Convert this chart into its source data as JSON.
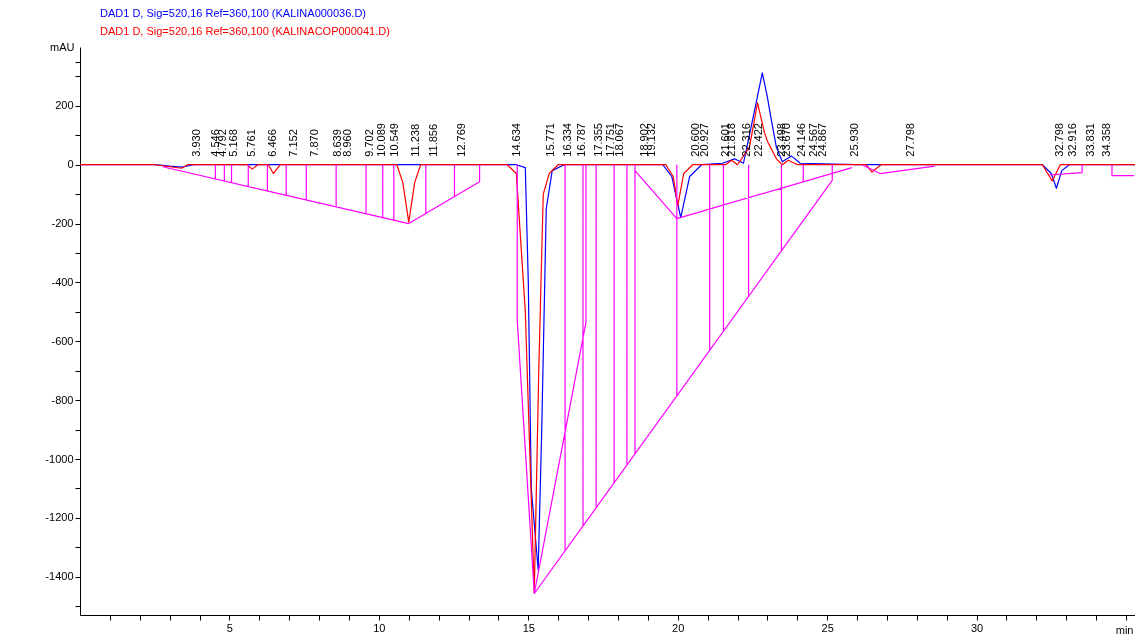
{
  "chart_data": {
    "type": "line",
    "xlabel": "min",
    "ylabel": "mAU",
    "xlim": [
      0,
      35.3
    ],
    "ylim": [
      -1530,
      400
    ],
    "grid": false,
    "legend": "top left",
    "xticks": [
      {
        "value": 1,
        "label": null
      },
      {
        "value": 2,
        "label": null
      },
      {
        "value": 3,
        "label": null
      },
      {
        "value": 4,
        "label": null
      },
      5,
      {
        "value": 6,
        "label": null
      },
      {
        "value": 7,
        "label": null
      },
      {
        "value": 8,
        "label": null
      },
      {
        "value": 9,
        "label": null
      },
      10,
      {
        "value": 11,
        "label": null
      },
      {
        "value": 12,
        "label": null
      },
      {
        "value": 13,
        "label": null
      },
      {
        "value": 14,
        "label": null
      },
      15,
      {
        "value": 16,
        "label": null
      },
      {
        "value": 17,
        "label": null
      },
      {
        "value": 18,
        "label": null
      },
      {
        "value": 19,
        "label": null
      },
      20,
      {
        "value": 21,
        "label": null
      },
      {
        "value": 22,
        "label": null
      },
      {
        "value": 23,
        "label": null
      },
      {
        "value": 24,
        "label": null
      },
      25,
      {
        "value": 26,
        "label": null
      },
      {
        "value": 27,
        "label": null
      },
      {
        "value": 28,
        "label": null
      },
      {
        "value": 29,
        "label": null
      },
      30,
      {
        "value": 31,
        "label": null
      },
      {
        "value": 32,
        "label": null
      },
      {
        "value": 33,
        "label": null
      },
      {
        "value": 34,
        "label": null
      },
      {
        "value": 35,
        "label": null
      }
    ],
    "yticks": [
      {
        "value": -1500,
        "label": null
      },
      -1400,
      {
        "value": -1300,
        "label": null
      },
      -1200,
      {
        "value": -1100,
        "label": null
      },
      -1000,
      {
        "value": -900,
        "label": null
      },
      -800,
      {
        "value": -700,
        "label": null
      },
      -600,
      {
        "value": -500,
        "label": null
      },
      -400,
      {
        "value": -300,
        "label": null
      },
      -200,
      {
        "value": -100,
        "label": null
      },
      0,
      {
        "value": 100,
        "label": null
      },
      200,
      {
        "value": 300,
        "label": null
      },
      {
        "value": 350,
        "label": null
      }
    ],
    "series": [
      {
        "name": "DAD1 D, Sig=520,16 Ref=360,100 (KALINA000036.D)",
        "color": "#0000ff",
        "x": [
          0,
          2.5,
          3.0,
          3.4,
          3.8,
          14.6,
          14.9,
          15.0,
          15.1,
          15.33,
          15.45,
          15.6,
          15.8,
          16.2,
          19.5,
          19.8,
          20.1,
          20.4,
          20.8,
          21.5,
          21.9,
          22.2,
          22.5,
          22.83,
          23.0,
          23.1,
          23.3,
          23.5,
          23.8,
          24.1,
          26.0,
          32.2,
          32.5,
          32.67,
          32.85,
          33.1,
          35.3
        ],
        "values": [
          0,
          0,
          -5,
          -8,
          0,
          0,
          -10,
          -400,
          -1100,
          -1376,
          -900,
          -150,
          -20,
          0,
          0,
          -40,
          -180,
          -40,
          0,
          5,
          20,
          5,
          150,
          312,
          230,
          170,
          60,
          10,
          30,
          5,
          0,
          0,
          -30,
          -80,
          -20,
          0,
          0
        ]
      },
      {
        "name": "DAD1 D, Sig=520,16 Ref=360,100 (KALINACOP000041.D)",
        "color": "#ff0000",
        "x": [
          0,
          2.5,
          3.4,
          3.6,
          5.6,
          5.76,
          5.95,
          6.3,
          6.47,
          6.7,
          10.6,
          10.8,
          11.0,
          11.2,
          11.4,
          14.3,
          14.6,
          14.9,
          15.2,
          15.35,
          15.5,
          15.7,
          16.0,
          19.6,
          19.85,
          20.0,
          20.2,
          20.5,
          21.6,
          21.8,
          22.0,
          22.4,
          22.67,
          22.9,
          23.0,
          23.3,
          23.5,
          23.7,
          24.0,
          26.3,
          26.5,
          26.8,
          32.2,
          32.53,
          32.8,
          35.3
        ],
        "values": [
          0,
          0,
          -12,
          0,
          0,
          -15,
          0,
          0,
          -30,
          0,
          0,
          -60,
          -195,
          -60,
          0,
          0,
          -30,
          -500,
          -1454,
          -700,
          -100,
          -30,
          0,
          0,
          -40,
          -140,
          -30,
          0,
          0,
          15,
          0,
          60,
          210,
          110,
          80,
          20,
          0,
          15,
          0,
          0,
          -25,
          0,
          0,
          -55,
          0,
          0
        ]
      },
      {
        "color": "#ff00ff",
        "x": [
          2.77,
          11.0,
          13.37,
          13.37,
          null,
          4.53,
          4.53,
          null,
          4.83,
          4.83,
          null,
          5.07,
          5.07,
          null,
          5.63,
          5.63,
          null,
          6.27,
          6.27,
          null,
          6.9,
          6.9,
          null,
          7.57,
          7.57,
          null,
          8.57,
          8.57,
          null,
          9.57,
          9.57,
          null,
          10.13,
          10.13,
          null,
          10.5,
          10.5,
          null,
          11.57,
          11.57,
          null,
          12.53,
          12.53,
          null,
          14.63,
          14.63,
          15.2,
          16.93,
          16.93,
          null,
          15.2,
          25.17,
          25.17,
          null,
          16.23,
          16.23,
          null,
          16.83,
          16.83,
          null,
          17.27,
          17.27,
          null,
          17.87,
          17.87,
          null,
          18.3,
          18.3,
          null,
          18.57,
          18.57,
          null,
          19.97,
          19.97,
          null,
          21.07,
          21.07,
          null,
          21.53,
          21.53,
          null,
          22.37,
          22.37,
          null,
          23.47,
          23.47,
          null,
          18.57,
          19.97,
          25.83,
          null,
          24.2,
          24.2,
          null,
          26.17,
          26.77,
          28.6,
          null,
          32.43,
          33.53,
          33.53,
          null,
          34.53,
          34.53,
          35.27
        ],
        "values": [
          -7,
          -200,
          -58,
          0,
          null,
          0,
          -48,
          null,
          0,
          -55,
          null,
          0,
          -61,
          null,
          0,
          -74,
          null,
          0,
          -89,
          null,
          0,
          -104,
          null,
          0,
          -120,
          null,
          0,
          -143,
          null,
          0,
          -166,
          null,
          0,
          -180,
          null,
          0,
          -188,
          null,
          0,
          -166,
          null,
          0,
          -109,
          null,
          0,
          -529,
          -1457,
          -535,
          0,
          null,
          -1457,
          -53,
          0,
          null,
          0,
          -1312,
          null,
          0,
          -1227,
          null,
          0,
          -1166,
          null,
          0,
          -1081,
          null,
          0,
          -1021,
          null,
          0,
          -983,
          null,
          0,
          -785,
          null,
          0,
          -630,
          null,
          0,
          -566,
          null,
          0,
          -448,
          null,
          0,
          -293,
          null,
          -20,
          -183,
          -10,
          null,
          0,
          -59,
          null,
          0,
          -30,
          -5,
          null,
          -35,
          -27,
          0,
          null,
          0,
          -37,
          -37
        ]
      }
    ],
    "annotations": [
      {
        "text": "3.930",
        "x": 3.93,
        "y": 0
      },
      {
        "text": "4.546",
        "x": 4.546,
        "y": 0
      },
      {
        "text": "4.792",
        "x": 4.792,
        "y": 0
      },
      {
        "text": "5.168",
        "x": 5.168,
        "y": 0
      },
      {
        "text": "5.761",
        "x": 5.761,
        "y": 0
      },
      {
        "text": "6.466",
        "x": 6.466,
        "y": 0
      },
      {
        "text": "7.152",
        "x": 7.152,
        "y": 0
      },
      {
        "text": "7.870",
        "x": 7.87,
        "y": 0
      },
      {
        "text": "8.639",
        "x": 8.639,
        "y": 0
      },
      {
        "text": "8.960",
        "x": 8.96,
        "y": 0
      },
      {
        "text": "9.702",
        "x": 9.702,
        "y": 0
      },
      {
        "text": "10.089",
        "x": 10.089,
        "y": 0
      },
      {
        "text": "10.549",
        "x": 10.549,
        "y": 0
      },
      {
        "text": "11.238",
        "x": 11.238,
        "y": 0
      },
      {
        "text": "11.856",
        "x": 11.856,
        "y": 0
      },
      {
        "text": "12.769",
        "x": 12.769,
        "y": 0
      },
      {
        "text": "14.634",
        "x": 14.634,
        "y": 0
      },
      {
        "text": "15.771",
        "x": 15.771,
        "y": 0
      },
      {
        "text": "16.334",
        "x": 16.334,
        "y": 0
      },
      {
        "text": "16.787",
        "x": 16.787,
        "y": 0
      },
      {
        "text": "17.355",
        "x": 17.355,
        "y": 0
      },
      {
        "text": "17.751",
        "x": 17.751,
        "y": 0
      },
      {
        "text": "18.067",
        "x": 18.067,
        "y": 0
      },
      {
        "text": "18.902",
        "x": 18.902,
        "y": 0
      },
      {
        "text": "19.132",
        "x": 19.132,
        "y": 0
      },
      {
        "text": "20.600",
        "x": 20.6,
        "y": 0
      },
      {
        "text": "20.927",
        "x": 20.927,
        "y": 0
      },
      {
        "text": "21.601",
        "x": 21.601,
        "y": 0
      },
      {
        "text": "21.818",
        "x": 21.818,
        "y": 0
      },
      {
        "text": "22.316",
        "x": 22.316,
        "y": 0
      },
      {
        "text": "22.422",
        "x": 22.422,
        "y": 0
      },
      {
        "text": "23.498",
        "x": 23.498,
        "y": 0
      },
      {
        "text": "23.670",
        "x": 23.67,
        "y": 0
      },
      {
        "text": "24.146",
        "x": 24.146,
        "y": 0
      },
      {
        "text": "24.567",
        "x": 24.567,
        "y": 0
      },
      {
        "text": "24.867",
        "x": 24.867,
        "y": 0
      },
      {
        "text": "25.930",
        "x": 25.93,
        "y": 0
      },
      {
        "text": "27.798",
        "x": 27.798,
        "y": 0
      },
      {
        "text": "32.798",
        "x": 32.798,
        "y": 0
      },
      {
        "text": "32.916",
        "x": 32.916,
        "y": 0
      },
      {
        "text": "33.831",
        "x": 33.831,
        "y": 0
      },
      {
        "text": "34.358",
        "x": 34.358,
        "y": 0
      }
    ]
  }
}
